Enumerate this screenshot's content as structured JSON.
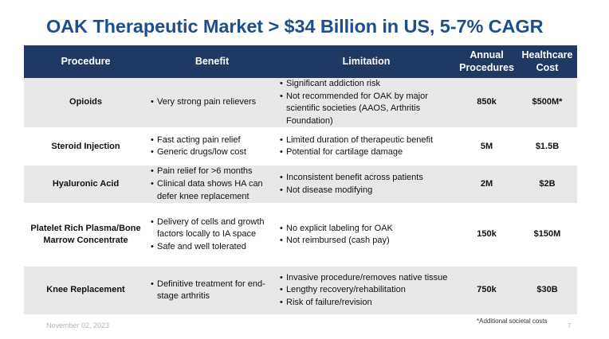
{
  "title": "OAK Therapeutic Market > $34 Billion in US, 5-7% CAGR",
  "table": {
    "headers": {
      "procedure": "Procedure",
      "benefit": "Benefit",
      "limitation": "Limitation",
      "annual_procedures": "Annual Procedures",
      "healthcare_cost": "Healthcare Cost"
    },
    "rows": [
      {
        "procedure": "Opioids",
        "benefits": [
          "Very strong pain relievers"
        ],
        "limitations": [
          "Significant addiction risk",
          "Not recommended for OAK by major scientific societies (AAOS, Arthritis Foundation)"
        ],
        "annual_procedures": "850k",
        "healthcare_cost": "$500M*"
      },
      {
        "procedure": "Steroid Injection",
        "benefits": [
          "Fast acting pain relief",
          "Generic drugs/low cost"
        ],
        "limitations": [
          "Limited duration of therapeutic benefit",
          "Potential for cartilage damage"
        ],
        "annual_procedures": "5M",
        "healthcare_cost": "$1.5B"
      },
      {
        "procedure": "Hyaluronic Acid",
        "benefits": [
          "Pain relief for >6 months",
          "Clinical data shows HA can defer knee replacement"
        ],
        "limitations": [
          "Inconsistent benefit across patients",
          "Not disease modifying"
        ],
        "annual_procedures": "2M",
        "healthcare_cost": "$2B"
      },
      {
        "procedure": "Platelet Rich Plasma/Bone Marrow Concentrate",
        "benefits": [
          "Delivery of cells and growth factors locally to IA space",
          "Safe and well tolerated"
        ],
        "limitations": [
          "No explicit labeling for OAK",
          "Not reimbursed (cash pay)"
        ],
        "annual_procedures": "150k",
        "healthcare_cost": "$150M"
      },
      {
        "procedure": "Knee Replacement",
        "benefits": [
          "Definitive treatment for end-stage arthritis"
        ],
        "limitations": [
          "Invasive procedure/removes native tissue",
          "Lengthy recovery/rehabilitation",
          "Risk of failure/revision"
        ],
        "annual_procedures": "750k",
        "healthcare_cost": "$30B"
      }
    ]
  },
  "footnote": "*Additional societal costs",
  "footer_date": "November 02, 2023",
  "page_number": "7",
  "colors": {
    "title": "#1f4e8c",
    "header_bg": "#1f3864",
    "shaded_row": "#e8e8e8"
  }
}
